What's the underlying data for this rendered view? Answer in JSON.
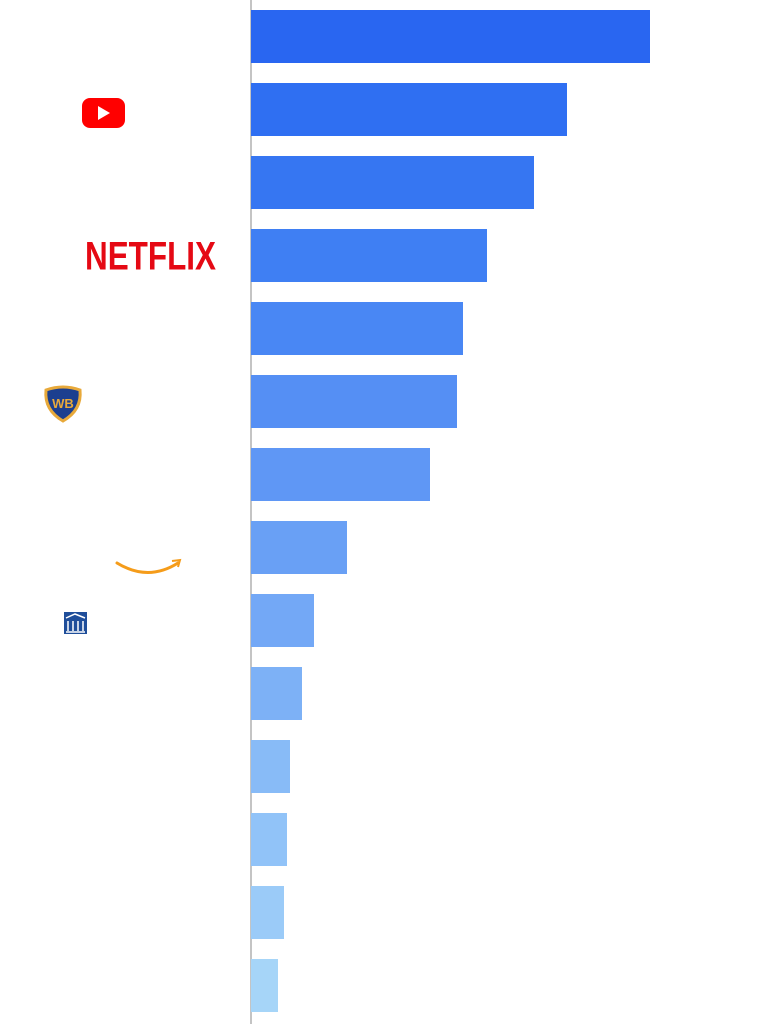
{
  "chart_data": {
    "type": "bar",
    "orientation": "horizontal",
    "categories": [
      null,
      null,
      null,
      "NETFLIX",
      null,
      null,
      null,
      null,
      null,
      null,
      null,
      null,
      null,
      null
    ],
    "values": [
      399,
      316,
      283,
      236,
      212,
      206,
      179,
      96,
      63,
      51,
      39,
      36,
      33,
      27
    ],
    "colors": [
      "#2966f1",
      "#2f6ff2",
      "#3676f2",
      "#3f7ff3",
      "#4987f4",
      "#558ff4",
      "#5f97f5",
      "#69a0f5",
      "#73a8f6",
      "#7db1f6",
      "#88bbf7",
      "#91c3f8",
      "#9bcbf8",
      "#a6d5f8"
    ],
    "xlim": [
      0,
      529
    ]
  }
}
